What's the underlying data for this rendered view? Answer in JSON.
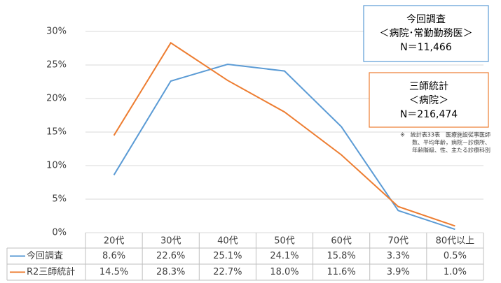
{
  "chart_data": {
    "type": "line",
    "categories": [
      "20代",
      "30代",
      "40代",
      "50代",
      "60代",
      "70代",
      "80代以上"
    ],
    "series": [
      {
        "name": "今回調査",
        "color": "#5b9bd5",
        "values": [
          8.6,
          22.6,
          25.1,
          24.1,
          15.8,
          3.3,
          0.5
        ],
        "value_labels": [
          "8.6%",
          "22.6%",
          "25.1%",
          "24.1%",
          "15.8%",
          "3.3%",
          "0.5%"
        ]
      },
      {
        "name": "R2三師統計",
        "color": "#ed7d31",
        "values": [
          14.5,
          28.3,
          22.7,
          18.0,
          11.6,
          3.9,
          1.0
        ],
        "value_labels": [
          "14.5%",
          "28.3%",
          "22.7%",
          "18.0%",
          "11.6%",
          "3.9%",
          "1.0%"
        ]
      }
    ],
    "ylim": [
      0,
      30
    ],
    "yticks": [
      {
        "value": 0,
        "label": "0%"
      },
      {
        "value": 5,
        "label": "5%"
      },
      {
        "value": 10,
        "label": "10%"
      },
      {
        "value": 15,
        "label": "15%"
      },
      {
        "value": 20,
        "label": "20%"
      },
      {
        "value": 25,
        "label": "25%"
      },
      {
        "value": 30,
        "label": "30%"
      }
    ],
    "grid": true,
    "annotations": [
      {
        "lines": [
          "今回調査",
          "＜病院･常勤勤務医＞",
          "N＝11,466"
        ],
        "color": "#5b9bd5"
      },
      {
        "lines": [
          "三師統計",
          "＜病院＞",
          "N＝216,474"
        ],
        "color": "#ed7d31"
      }
    ],
    "note": [
      "※　統計表33表　医療施設従事医師",
      "数、平均年齢，病院－診療所、",
      "年齢階級、性、主たる診療科別"
    ]
  }
}
